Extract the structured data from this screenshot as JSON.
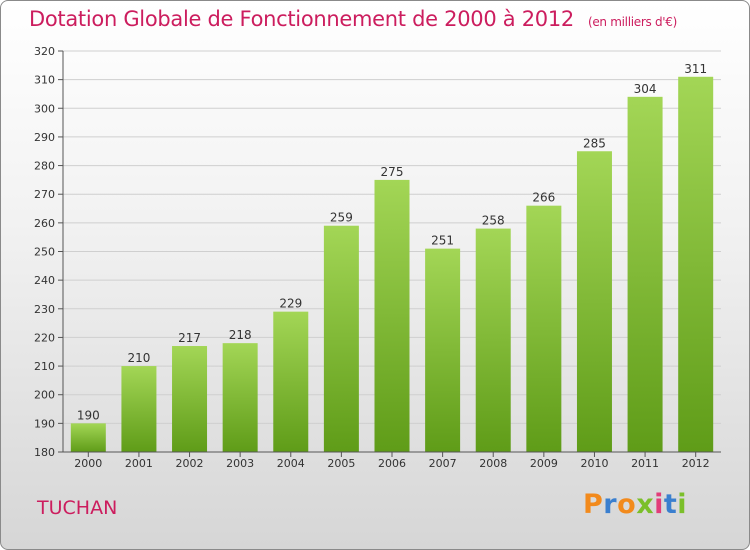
{
  "title": "Dotation Globale de Fonctionnement de 2000 à 2012",
  "unit": "(en milliers d'€)",
  "commune": "TUCHAN",
  "brand": "Proxiti",
  "colors": {
    "title": "#cc1d5e",
    "bar_top": "#a3d656",
    "bar_bottom": "#5f9c18",
    "grid": "#cfcfcf"
  },
  "chart_data": {
    "type": "bar",
    "categories": [
      "2000",
      "2001",
      "2002",
      "2003",
      "2004",
      "2005",
      "2006",
      "2007",
      "2008",
      "2009",
      "2010",
      "2011",
      "2012"
    ],
    "values": [
      190,
      210,
      217,
      218,
      229,
      259,
      275,
      251,
      258,
      266,
      285,
      304,
      311
    ],
    "ylim": [
      180,
      320
    ],
    "yticks": [
      180,
      190,
      200,
      210,
      220,
      230,
      240,
      250,
      260,
      270,
      280,
      290,
      300,
      310,
      320
    ],
    "grid": true,
    "title": "Dotation Globale de Fonctionnement de 2000 à 2012",
    "xlabel": "",
    "ylabel": ""
  }
}
